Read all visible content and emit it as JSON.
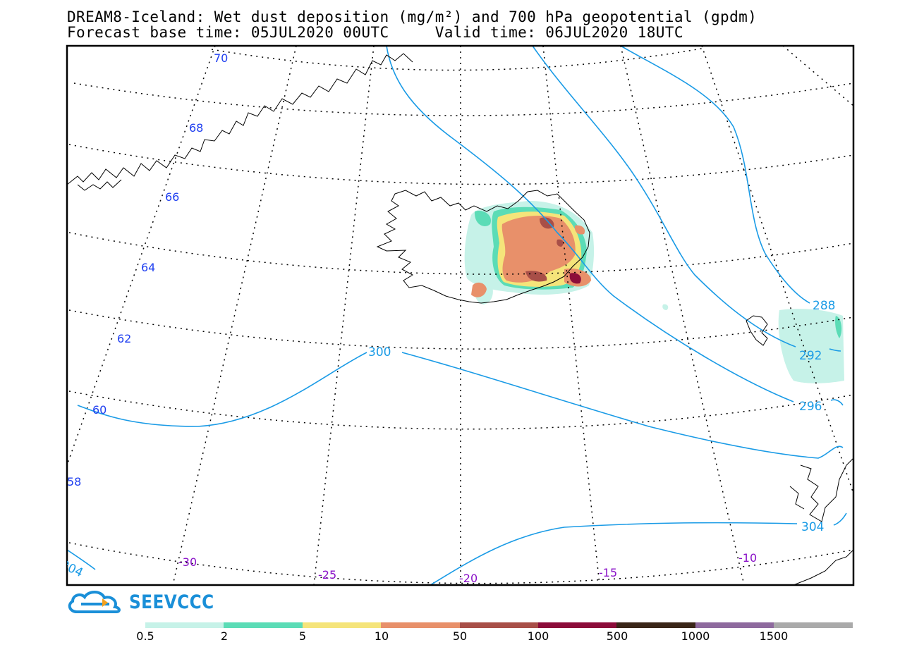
{
  "title": {
    "line1": "DREAM8-Iceland: Wet dust deposition (mg/m²) and 700 hPa geopotential (gpdm)",
    "line2": "Forecast base time: 05JUL2020 00UTC     Valid time: 06JUL2020 18UTC"
  },
  "map": {
    "latitude_labels": [
      "70",
      "68",
      "66",
      "64",
      "62",
      "60",
      "58"
    ],
    "longitude_labels": [
      "-30",
      "-25",
      "-20",
      "-15",
      "-10"
    ],
    "contour_labels": [
      "288",
      "292",
      "296",
      "300",
      "304",
      "304"
    ],
    "colors": {
      "graticule": "#000000",
      "contour": "#1a9be6",
      "lat_label": "#1f3ff0",
      "lon_label": "#8a12c8",
      "coastline": "#000000"
    }
  },
  "logo": {
    "text": "SEEVCCC",
    "icon": "cloud-icon"
  },
  "legend": {
    "labels": [
      "0.5",
      "2",
      "5",
      "10",
      "50",
      "100",
      "500",
      "1000",
      "1500"
    ],
    "colors": [
      "#c6f2e8",
      "#5bdcb6",
      "#f5e47a",
      "#e8906a",
      "#a84f48",
      "#8c0c3a",
      "#3a2618",
      "#8e6a9e",
      "#aaaaaa"
    ]
  }
}
